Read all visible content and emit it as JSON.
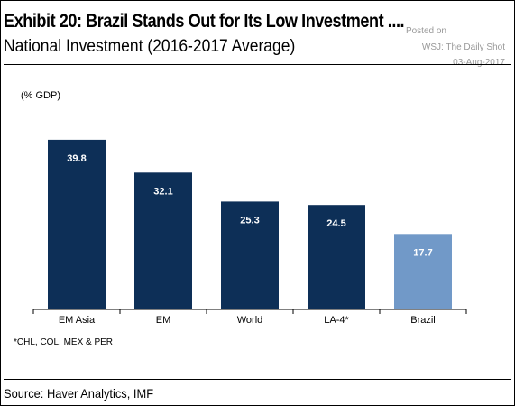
{
  "chart_data": {
    "type": "bar",
    "title": "Exhibit 20: Brazil Stands Out for Its Low Investment ....",
    "subtitle": "National Investment (2016-2017 Average)",
    "ylabel": "(% GDP)",
    "xlabel": "",
    "categories": [
      "EM Asia",
      "EM",
      "World",
      "LA-4*",
      "Brazil"
    ],
    "values": [
      39.8,
      32.1,
      25.3,
      24.5,
      17.7
    ],
    "data_labels": [
      "39.8",
      "32.1",
      "25.3",
      "24.5",
      "17.7"
    ],
    "ylim": [
      0,
      40
    ],
    "grid": false,
    "legend": "none",
    "colors": {
      "default_bar": "#0d2f57",
      "highlight_bar": "#7199c8",
      "label_on_dark": "#ffffff",
      "label_on_light": "#ffffff"
    },
    "highlight_index": 4
  },
  "watermark": {
    "line1": "Posted on",
    "line2": "WSJ: The Daily Shot",
    "line3": "03-Aug-2017"
  },
  "footnote": "*CHL, COL, MEX & PER",
  "source": "Source: Haver Analytics, IMF"
}
